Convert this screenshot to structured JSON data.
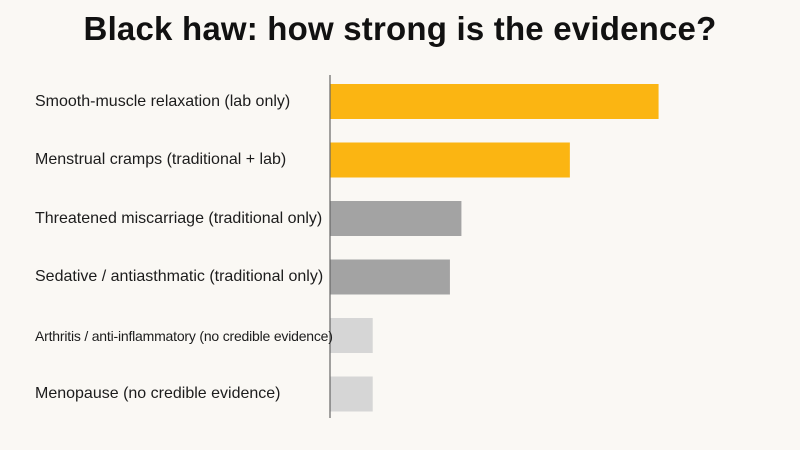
{
  "chart_data": {
    "type": "bar",
    "orientation": "horizontal",
    "title": "Black haw: how strong is the evidence?",
    "xlabel": "",
    "ylabel": "",
    "categories": [
      "Smooth-muscle relaxation (lab only)",
      "Menstrual cramps (traditional + lab)",
      "Threatened miscarriage (traditional only)",
      "Sedative / antiasthmatic (traditional only)",
      "Arthritis / anti-inflammatory (no credible evidence)",
      "Menopause (no credible evidence)"
    ],
    "values": [
      10,
      7.3,
      4.0,
      3.65,
      1.3,
      1.3
    ],
    "xlim": [
      0,
      14
    ],
    "bar_colors": [
      "#fbb512",
      "#fbb512",
      "#a3a3a3",
      "#a3a3a3",
      "#d6d6d6",
      "#d6d6d6"
    ],
    "grid": false,
    "legend": "none"
  },
  "colors": {
    "background": "#faf8f4",
    "axis": "#666666",
    "text": "#1c1c1c"
  }
}
